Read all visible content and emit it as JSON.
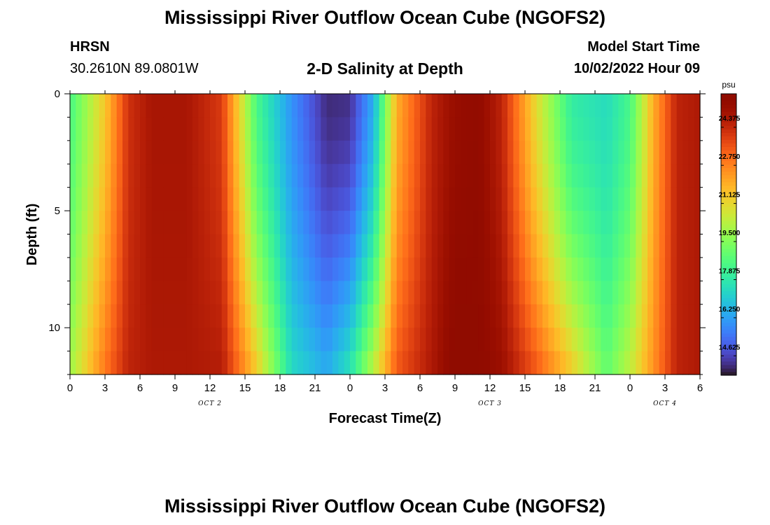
{
  "header": {
    "title": "Mississippi River Outflow Ocean Cube (NGOFS2)",
    "station": "HRSN",
    "coordinates": "30.2610N  89.0801W",
    "subtitle": "2-D Salinity at Depth",
    "model_start_label": "Model Start Time",
    "model_start_value": "10/02/2022 Hour 09"
  },
  "footer": {
    "title": "Mississippi River Outflow Ocean Cube (NGOFS2)"
  },
  "chart_data": {
    "type": "heatmap",
    "title": "2-D Salinity at Depth",
    "xlabel": "Forecast Time(Z)",
    "ylabel": "Depth (ft)",
    "x_unit": "hours",
    "x_range": [
      0,
      54
    ],
    "x_tick_labels": [
      "0",
      "3",
      "6",
      "9",
      "12",
      "15",
      "18",
      "21",
      "0",
      "3",
      "6",
      "9",
      "12",
      "15",
      "18",
      "21",
      "0",
      "3",
      "6"
    ],
    "date_labels": [
      {
        "text": "OCT 2",
        "at_hour": 12
      },
      {
        "text": "OCT 3",
        "at_hour": 36
      },
      {
        "text": "OCT 4",
        "at_hour": 51
      }
    ],
    "y_range": [
      0,
      12
    ],
    "y_reversed": true,
    "y_tick_labels": [
      "0",
      "5",
      "10"
    ],
    "y_tick_values": [
      0,
      5,
      10
    ],
    "colorbar": {
      "unit": "psu",
      "min": 13.8,
      "max": 25.8,
      "tick_values": [
        14.625,
        16.25,
        17.875,
        19.5,
        21.125,
        22.75,
        24.375
      ],
      "tick_labels": [
        "14.625",
        "16.250",
        "17.875",
        "19.500",
        "21.125",
        "22.750",
        "24.375"
      ],
      "colormap": "turbo"
    },
    "grid": false,
    "salinity_keyframes_psu": {
      "hours": [
        0,
        3,
        5,
        7,
        10,
        13,
        16,
        19,
        22,
        24,
        26,
        28,
        31,
        33,
        35,
        37,
        40,
        43,
        46,
        48,
        50,
        52,
        54
      ],
      "surface_0ft": [
        18.5,
        21.5,
        24.2,
        24.9,
        24.9,
        24.0,
        18.5,
        16.0,
        14.2,
        14.3,
        16.5,
        22.0,
        24.5,
        25.3,
        25.5,
        24.5,
        21.0,
        18.0,
        17.5,
        18.5,
        22.0,
        24.5,
        24.8
      ],
      "bottom_12ft": [
        20.0,
        23.0,
        24.5,
        24.8,
        24.8,
        24.7,
        21.5,
        17.5,
        16.5,
        17.8,
        20.5,
        23.5,
        24.8,
        25.8,
        25.7,
        25.2,
        23.5,
        21.5,
        19.0,
        20.5,
        22.5,
        24.5,
        24.8
      ]
    }
  }
}
